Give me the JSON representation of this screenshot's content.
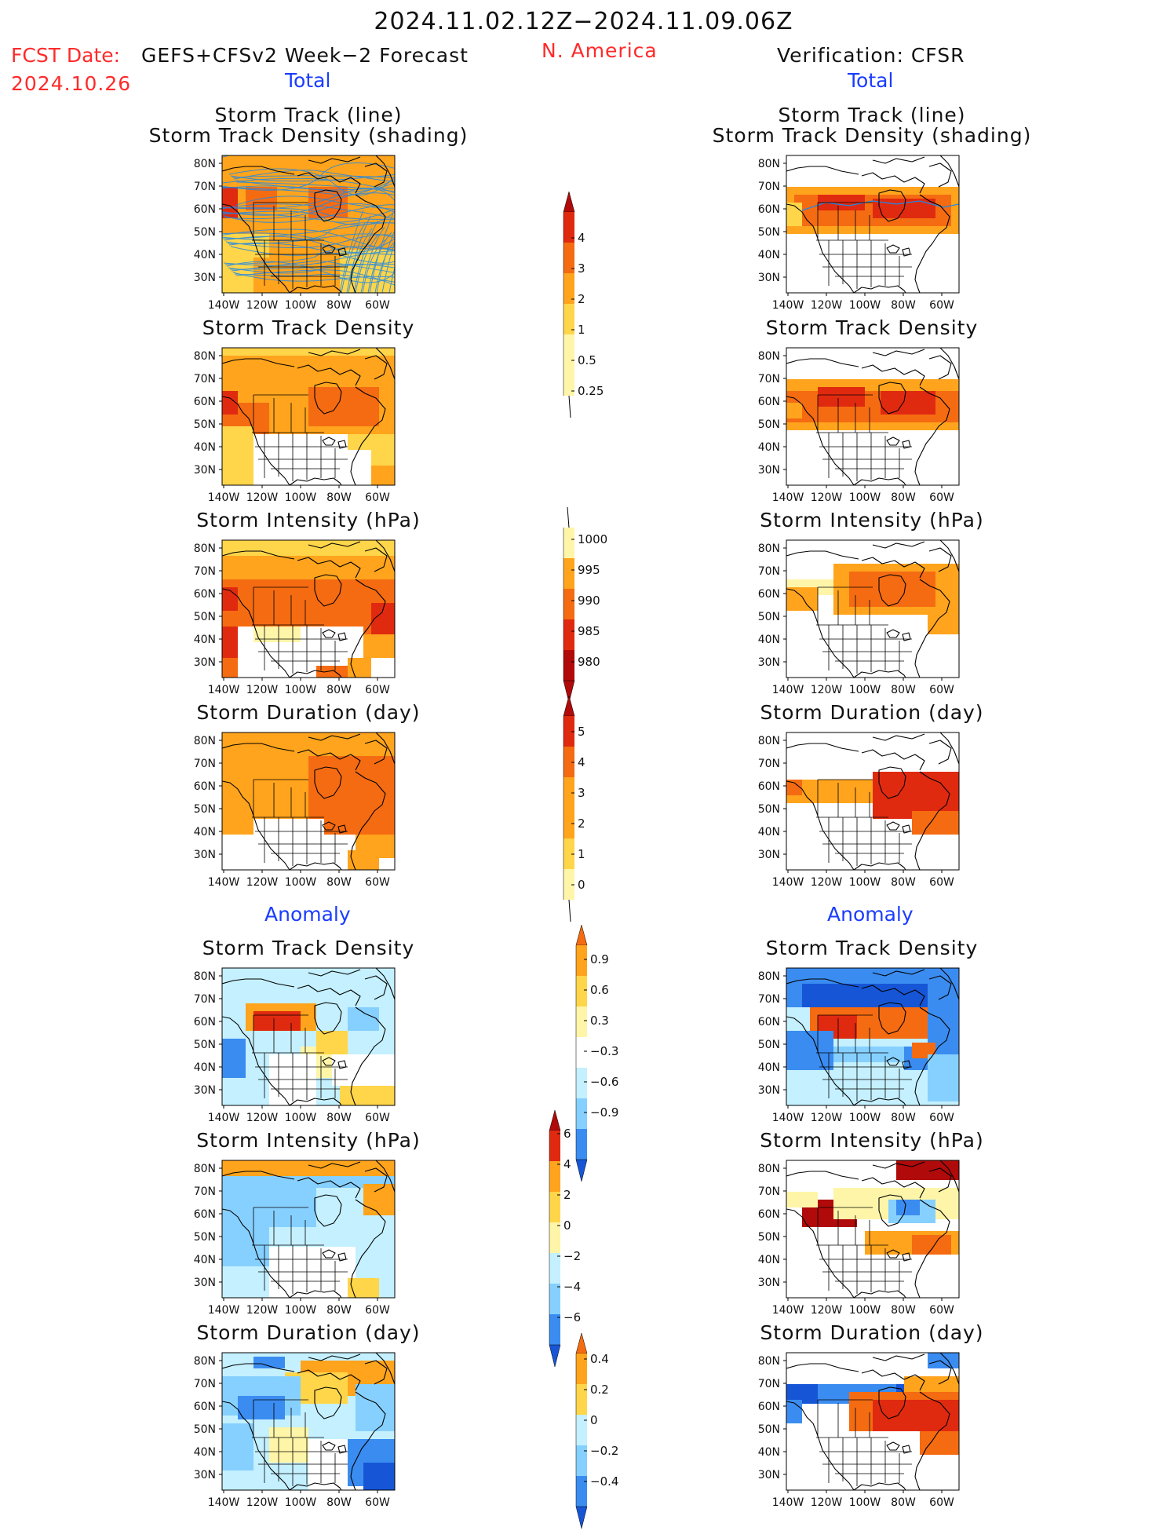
{
  "header": {
    "title": "2024.11.02.12Z−2024.11.09.06Z",
    "fcst_label": "FCST Date:",
    "model": "GEFS+CFSv2 Week−2 Forecast",
    "fcst_date": "2024.10.26",
    "region": "N. America",
    "verification": "Verification: CFSR"
  },
  "sections": {
    "total": "Total",
    "anomaly": "Anomaly"
  },
  "panel_titles": {
    "track_line": "Storm Track (line)",
    "track_density_shading": "Storm Track Density (shading)",
    "track_density": "Storm Track Density",
    "intensity": "Storm Intensity (hPa)",
    "duration": "Storm Duration (day)"
  },
  "axes": {
    "lat_labels": [
      "80N",
      "70N",
      "60N",
      "50N",
      "40N",
      "30N"
    ],
    "lon_labels": [
      "140W",
      "120W",
      "100W",
      "80W",
      "60W"
    ]
  },
  "colorbars": {
    "density_total": [
      "4",
      "3",
      "2",
      "1",
      "0.5",
      "0.25"
    ],
    "intensity_total": [
      "1000",
      "995",
      "990",
      "985",
      "980"
    ],
    "duration_total": [
      "5",
      "4",
      "3",
      "2",
      "1",
      "0"
    ],
    "density_anom": [
      "0.9",
      "0.6",
      "0.3",
      "−0.3",
      "−0.6",
      "−0.9"
    ],
    "intensity_anom": [
      "6",
      "4",
      "2",
      "0",
      "−2",
      "−4",
      "−6"
    ],
    "duration_anom": [
      "0.4",
      "0.2",
      "0",
      "−0.2",
      "−0.4"
    ]
  },
  "colors": {
    "pale_yellow": "#fff5a8",
    "yellow": "#ffd54a",
    "orange": "#ffa41c",
    "dark_orange": "#f56b12",
    "red": "#e02a10",
    "dark_red": "#b00a0a",
    "light_blue": "#c4f0ff",
    "sky_blue": "#86d0ff",
    "blue": "#3b8cf0",
    "dark_blue": "#1656d6",
    "track_line": "#1f88e5"
  }
}
